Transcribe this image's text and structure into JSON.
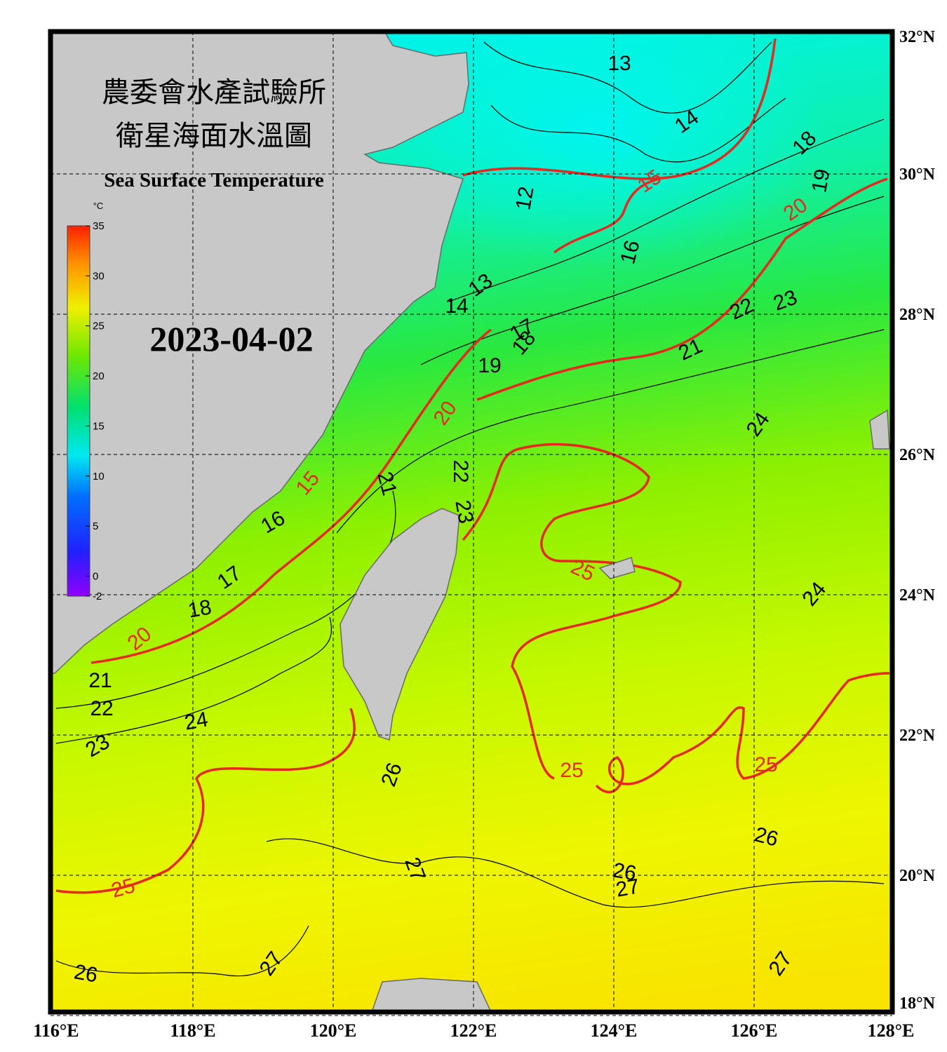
{
  "header": {
    "title_lines": [
      "農委會水產試驗所",
      "衛星海面水溫圖"
    ],
    "subtitle": "Sea Surface Temperature",
    "date": "2023-04-02"
  },
  "chart_data": {
    "type": "map",
    "xlim": [
      116,
      128
    ],
    "ylim": [
      18,
      32
    ],
    "xticks": [
      {
        "value": 116,
        "label": "116°E"
      },
      {
        "value": 118,
        "label": "118°E"
      },
      {
        "value": 120,
        "label": "120°E"
      },
      {
        "value": 122,
        "label": "122°E"
      },
      {
        "value": 124,
        "label": "124°E"
      },
      {
        "value": 126,
        "label": "126°E"
      },
      {
        "value": 128,
        "label": "128°E"
      }
    ],
    "yticks": [
      {
        "value": 18,
        "label": "18°N"
      },
      {
        "value": 20,
        "label": "20°N"
      },
      {
        "value": 22,
        "label": "22°N"
      },
      {
        "value": 24,
        "label": "24°N"
      },
      {
        "value": 26,
        "label": "26°N"
      },
      {
        "value": 28,
        "label": "28°N"
      },
      {
        "value": 30,
        "label": "30°N"
      },
      {
        "value": 32,
        "label": "32°N"
      }
    ],
    "grid": true,
    "colorbar": {
      "unit": "°C",
      "lim": [
        -2,
        35
      ],
      "ticks": [
        -2,
        0,
        5,
        10,
        15,
        20,
        25,
        30,
        35
      ]
    },
    "contour_labels": [
      13,
      14,
      18,
      19,
      15,
      20,
      12,
      16,
      13,
      14,
      23,
      22,
      17,
      18,
      21,
      19,
      20,
      24,
      22,
      21,
      15,
      16,
      23,
      17,
      25,
      24,
      18,
      20,
      21,
      22,
      24,
      23,
      26,
      25,
      25,
      26,
      27,
      26,
      27,
      25,
      27,
      27,
      26
    ]
  }
}
